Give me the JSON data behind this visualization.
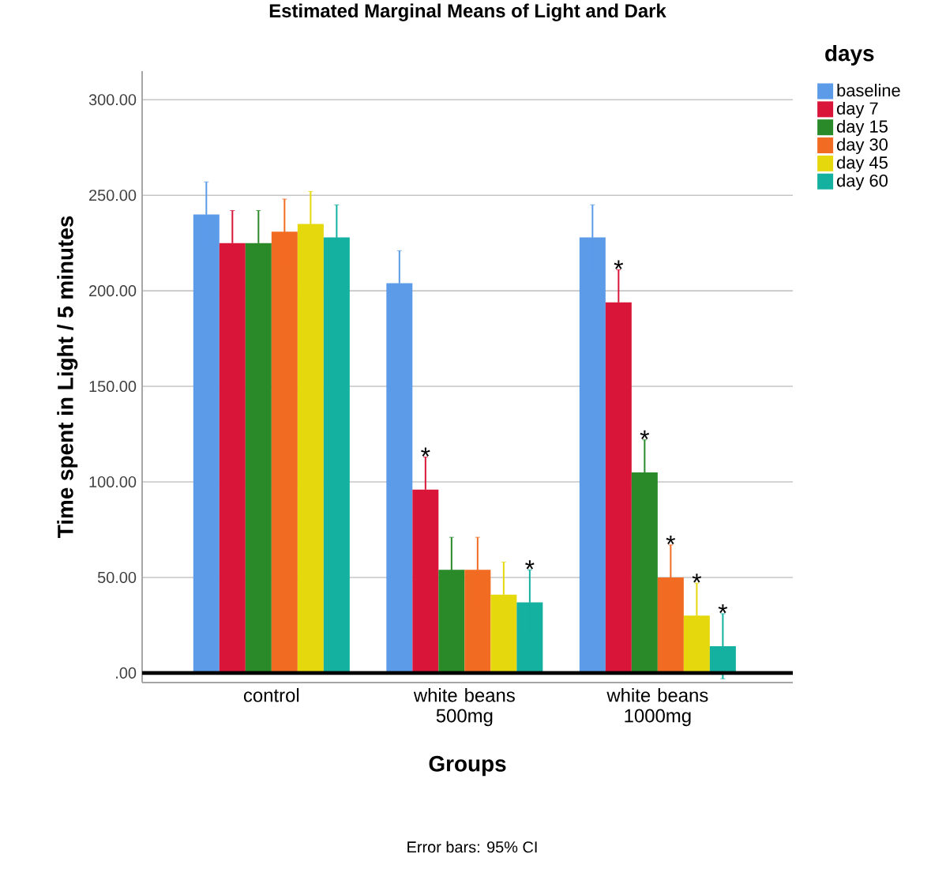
{
  "chart_data": {
    "type": "bar",
    "title": "Estimated Marginal Means of Light and Dark",
    "xlabel": "Groups",
    "ylabel": "Time spent in Light / 5 minutes",
    "legend_title": "days",
    "categories": [
      "control",
      "white beans 500mg",
      "white beans 1000mg"
    ],
    "series": [
      {
        "name": "baseline",
        "color": "#5b9be8",
        "values": [
          240,
          204,
          228
        ],
        "errors": [
          17,
          17,
          17
        ]
      },
      {
        "name": "day 7",
        "color": "#d9163a",
        "values": [
          225,
          96,
          194
        ],
        "errors": [
          17,
          17,
          17
        ]
      },
      {
        "name": "day 15",
        "color": "#2a8a2a",
        "values": [
          225,
          54,
          105
        ],
        "errors": [
          17,
          17,
          17
        ]
      },
      {
        "name": "day 30",
        "color": "#f26b22",
        "values": [
          231,
          54,
          50
        ],
        "errors": [
          17,
          17,
          17
        ]
      },
      {
        "name": "day 45",
        "color": "#e5d80c",
        "values": [
          235,
          41,
          30
        ],
        "errors": [
          17,
          17,
          17
        ]
      },
      {
        "name": "day 60",
        "color": "#14b0a0",
        "values": [
          228,
          37,
          14
        ],
        "errors": [
          17,
          17,
          17
        ]
      }
    ],
    "ylim": [
      -5,
      315
    ],
    "yticks": [
      {
        "value": 0,
        "label": ".00"
      },
      {
        "value": 50,
        "label": "50.00"
      },
      {
        "value": 100,
        "label": "100.00"
      },
      {
        "value": 150,
        "label": "150.00"
      },
      {
        "value": 200,
        "label": "200.00"
      },
      {
        "value": 250,
        "label": "250.00"
      },
      {
        "value": 300,
        "label": "300.00"
      }
    ],
    "grid": "y",
    "legend": "right",
    "annotations": [
      {
        "text": "*",
        "y": 113
      },
      {
        "text": "*",
        "x": "white beans 500mg",
        "y": 54
      },
      {
        "text": "*",
        "y": 211
      },
      {
        "text": "*",
        "y": 122
      },
      {
        "text": "*",
        "x": "white beans 1000mg",
        "y": 67
      },
      {
        "text": "*",
        "x": "white beans 1000mg",
        "y": 47
      },
      {
        "text": "*",
        "x": "white beans 1000mg",
        "y": 31
      },
      "Error bars: 95% CI"
    ]
  }
}
